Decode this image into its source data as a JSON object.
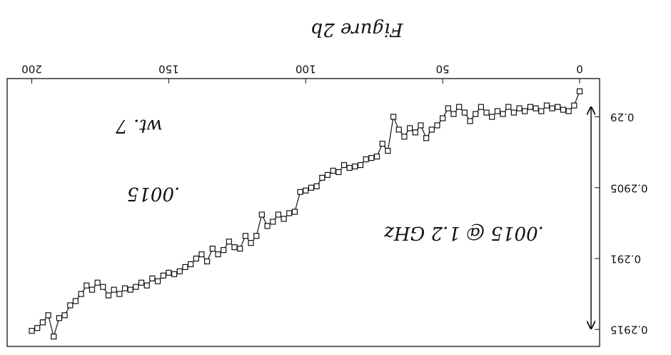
{
  "chart_data": {
    "type": "line",
    "annotations": [
      "Figure 2b",
      "wt. 7",
      ".0015",
      ".0015 @ 1.2 GHz"
    ],
    "x": [
      0,
      2,
      4,
      6,
      8,
      10,
      12,
      14,
      16,
      18,
      20,
      22,
      24,
      26,
      28,
      30,
      32,
      34,
      36,
      38,
      40,
      42,
      44,
      46,
      48,
      50,
      52,
      54,
      56,
      58,
      60,
      62,
      64,
      66,
      68,
      70,
      72,
      74,
      76,
      78,
      80,
      82,
      84,
      86,
      88,
      90,
      92,
      94,
      96,
      98,
      100,
      102,
      104,
      106,
      108,
      110,
      112,
      114,
      116,
      118,
      120,
      122,
      124,
      126,
      128,
      130,
      132,
      134,
      136,
      138,
      140,
      142,
      144,
      146,
      148,
      150,
      152,
      154,
      156,
      158,
      160,
      162,
      164,
      166,
      168,
      170,
      172,
      174,
      176,
      178,
      180,
      182,
      184,
      186,
      188,
      190,
      192,
      194,
      196,
      198,
      200
    ],
    "series": [
      {
        "color": "#111111",
        "values": [
          0.28982,
          0.28992,
          0.28996,
          0.28995,
          0.28993,
          0.28994,
          0.28992,
          0.28996,
          0.28994,
          0.28993,
          0.28996,
          0.28994,
          0.28997,
          0.28993,
          0.28998,
          0.28996,
          0.29,
          0.28997,
          0.28993,
          0.28998,
          0.29003,
          0.28997,
          0.28993,
          0.28998,
          0.28994,
          0.29001,
          0.29006,
          0.29009,
          0.29015,
          0.29006,
          0.29011,
          0.29008,
          0.29014,
          0.29009,
          0.29,
          0.29024,
          0.29019,
          0.29028,
          0.29029,
          0.2903,
          0.29034,
          0.29035,
          0.29036,
          0.29034,
          0.29039,
          0.29038,
          0.29041,
          0.29043,
          0.29049,
          0.2905,
          0.29052,
          0.29053,
          0.29067,
          0.29068,
          0.29072,
          0.29069,
          0.29074,
          0.29077,
          0.29069,
          0.29084,
          0.29089,
          0.29084,
          0.29093,
          0.29092,
          0.29088,
          0.29094,
          0.29097,
          0.29093,
          0.29102,
          0.29097,
          0.291,
          0.29104,
          0.29106,
          0.29109,
          0.29111,
          0.2911,
          0.29112,
          0.29116,
          0.29114,
          0.29119,
          0.29117,
          0.2912,
          0.29122,
          0.29121,
          0.29125,
          0.29122,
          0.29126,
          0.2912,
          0.29117,
          0.29122,
          0.29119,
          0.29125,
          0.2913,
          0.29133,
          0.2914,
          0.29142,
          0.29155,
          0.2914,
          0.29145,
          0.29149,
          0.29151
        ]
      }
    ],
    "xlim": [
      -7.3,
      209
    ],
    "ylim": [
      0.28973,
      0.29162
    ],
    "xticks": [
      0,
      50,
      100,
      150,
      200
    ],
    "yticks": [
      0.29,
      0.2905,
      0.291,
      0.2915
    ]
  }
}
